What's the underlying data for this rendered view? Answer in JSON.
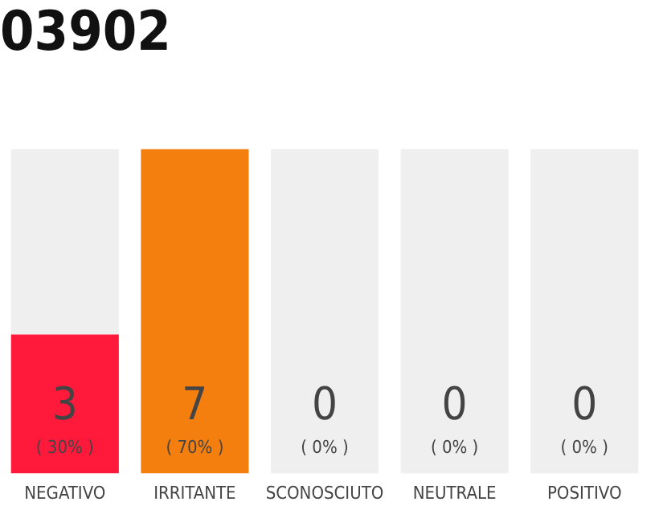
{
  "chart_data": {
    "type": "bar",
    "title": "03902",
    "stacked": true,
    "categories": [
      "NEGATIVO",
      "IRRITANTE",
      "SCONOSCIUTO",
      "NEUTRALE",
      "POSITIVO"
    ],
    "series": [
      {
        "colors": [
          "#ff1a3c",
          "#f47f0e",
          "#ff1a3c",
          "#ff1a3c",
          "#ff1a3c"
        ],
        "values": [
          3,
          7,
          0,
          0,
          0
        ],
        "value_labels": [
          "3",
          "7",
          null,
          null,
          null
        ]
      },
      {
        "color": "#efefef",
        "values": [
          4,
          0,
          7,
          7,
          7
        ]
      }
    ],
    "grid": false,
    "legend": false,
    "annotations": [
      {
        "text": "( 30% )",
        "x": "NEGATIVO",
        "y": 0
      },
      {
        "text": "( 70% )",
        "x": "IRRITANTE",
        "y": 0
      },
      {
        "text": "( 0% )",
        "x": "SCONOSCIUTO",
        "y": 0
      },
      {
        "text": "( 0% )",
        "x": "NEUTRALE",
        "y": 0
      },
      {
        "text": "( 0% )",
        "x": "POSITIVO",
        "y": 0
      },
      {
        "text": "0",
        "x": "SCONOSCIUTO",
        "y": 0
      },
      {
        "text": "0",
        "x": "NEUTRALE",
        "y": 0
      },
      {
        "text": "0",
        "x": "POSITIVO",
        "y": 0
      }
    ]
  }
}
